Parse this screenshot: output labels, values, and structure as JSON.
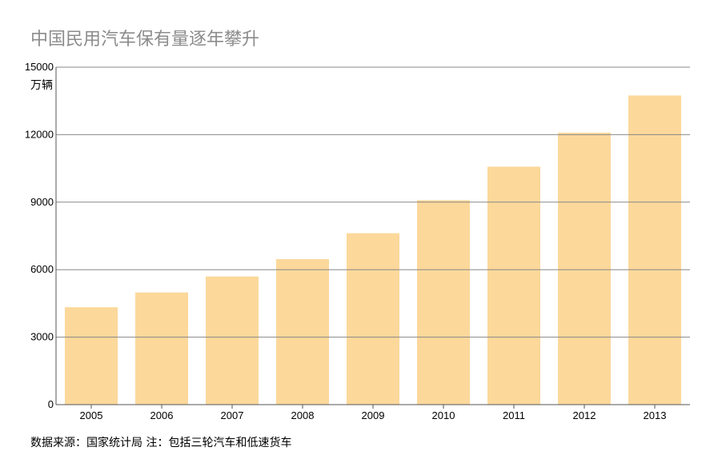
{
  "chart_data": {
    "type": "bar",
    "title": "中国民用汽车保有量逐年攀升",
    "ylabel": "万辆",
    "categories": [
      "2005",
      "2006",
      "2007",
      "2008",
      "2009",
      "2010",
      "2011",
      "2012",
      "2013"
    ],
    "values": [
      4330,
      4985,
      5697,
      6467,
      7619,
      9086,
      10578,
      12089,
      13741
    ],
    "ylim": [
      0,
      15000
    ],
    "yticks": [
      0,
      3000,
      6000,
      9000,
      12000,
      15000
    ],
    "grid": true,
    "bar_color": "#fcd89b",
    "note": "数据来源：国家统计局 注：包括三轮汽车和低速货车"
  }
}
